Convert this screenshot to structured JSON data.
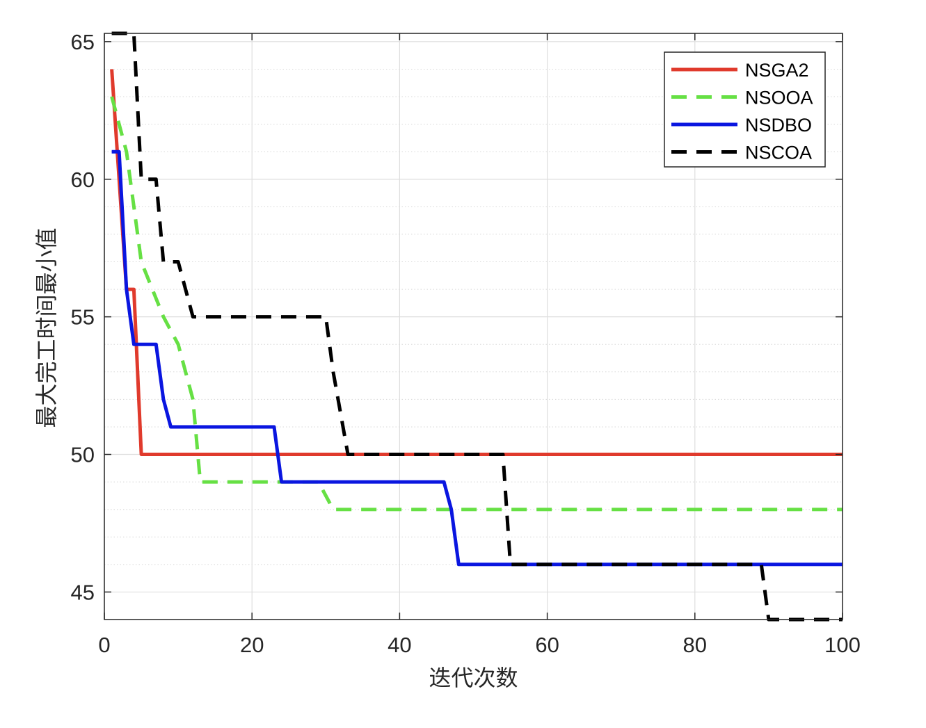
{
  "chart_data": {
    "type": "line",
    "xlabel": "迭代次数",
    "ylabel": "最大完工时间最小值",
    "xlim": [
      0,
      100
    ],
    "ylim": [
      44,
      65.3
    ],
    "x_ticks": [
      0,
      20,
      40,
      60,
      80,
      100
    ],
    "x_tick_labels": [
      "0",
      "20",
      "40",
      "60",
      "80",
      "100"
    ],
    "y_ticks": [
      45,
      50,
      55,
      60,
      65
    ],
    "y_tick_labels": [
      "45",
      "50",
      "55",
      "60",
      "65"
    ],
    "grid": true,
    "minor_grid": true,
    "legend_position": "top-right",
    "series": [
      {
        "name": "NSGA2",
        "color": "#e03a2c",
        "style": "solid",
        "x": [
          1,
          3,
          4,
          5,
          100
        ],
        "y": [
          64,
          56,
          56,
          50,
          50
        ]
      },
      {
        "name": "NSOOA",
        "color": "#66e044",
        "style": "dashed",
        "x": [
          1,
          2,
          3,
          5,
          8,
          10,
          12,
          13,
          15,
          23,
          29,
          31,
          100
        ],
        "y": [
          63,
          62,
          61,
          57,
          55,
          54,
          52,
          49,
          49,
          49,
          49,
          48,
          48
        ]
      },
      {
        "name": "NSDBO",
        "color": "#0a16e0",
        "style": "solid",
        "x": [
          1,
          2,
          3,
          4,
          7,
          8,
          9,
          23,
          24,
          46,
          47,
          48,
          100
        ],
        "y": [
          61,
          61,
          56,
          54,
          54,
          52,
          51,
          51,
          49,
          49,
          48,
          46,
          46
        ]
      },
      {
        "name": "NSCOA",
        "color": "#000000",
        "style": "dashed",
        "x": [
          1,
          4,
          5,
          7,
          8,
          10,
          12,
          29,
          30,
          31,
          33,
          54,
          55,
          89,
          90,
          100
        ],
        "y": [
          65.3,
          65.3,
          60,
          60,
          57,
          57,
          55,
          55,
          55,
          53,
          50,
          50,
          46,
          46,
          44,
          44
        ]
      }
    ]
  }
}
